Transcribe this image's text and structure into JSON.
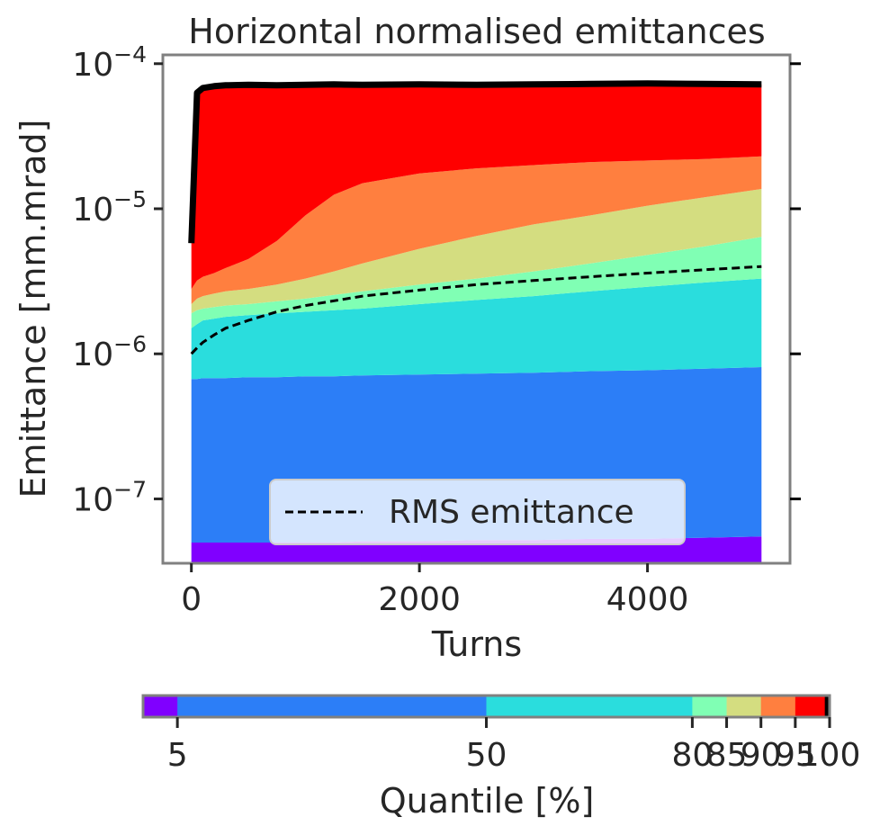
{
  "chart_data": {
    "type": "area",
    "title": "Horizontal normalised emittances",
    "xlabel": "Turns",
    "ylabel": "Emittance [mm.mrad]",
    "xlim": [
      -250,
      5250
    ],
    "ylim": [
      3.6e-08,
      0.000115
    ],
    "yscale": "log",
    "x_ticks": [
      0,
      2000,
      4000
    ],
    "x_tick_labels": [
      "0",
      "2000",
      "4000"
    ],
    "y_ticks": [
      1e-07,
      1e-06,
      1e-05,
      0.0001
    ],
    "y_tick_labels": [
      {
        "base": "10",
        "exp": "−7"
      },
      {
        "base": "10",
        "exp": "−6"
      },
      {
        "base": "10",
        "exp": "−5"
      },
      {
        "base": "10",
        "exp": "−4"
      }
    ],
    "x": [
      0,
      50,
      100,
      200,
      300,
      500,
      750,
      1000,
      1250,
      1500,
      2000,
      2500,
      3000,
      3500,
      4000,
      4500,
      5000
    ],
    "bands": [
      {
        "quantile": "5",
        "color": "#8000ff",
        "values": [
          5e-08,
          5e-08,
          5e-08,
          5e-08,
          5e-08,
          5e-08,
          5e-08,
          5e-08,
          5e-08,
          5.1e-08,
          5.1e-08,
          5.2e-08,
          5.2e-08,
          5.3e-08,
          5.3e-08,
          5.4e-08,
          5.5e-08
        ]
      },
      {
        "quantile": "50",
        "color": "#2c7ef7",
        "values": [
          6.7e-07,
          6.7e-07,
          6.8e-07,
          6.8e-07,
          6.8e-07,
          6.9e-07,
          6.9e-07,
          7e-07,
          7e-07,
          7.1e-07,
          7.2e-07,
          7.3e-07,
          7.4e-07,
          7.6e-07,
          7.7e-07,
          7.9e-07,
          8.1e-07
        ]
      },
      {
        "quantile": "80",
        "color": "#2adddd",
        "values": [
          1.5e-06,
          1.6e-06,
          1.7e-06,
          1.75e-06,
          1.8e-06,
          1.85e-06,
          1.9e-06,
          1.95e-06,
          2e-06,
          2.05e-06,
          2.2e-06,
          2.35e-06,
          2.5e-06,
          2.7e-06,
          2.9e-06,
          3.1e-06,
          3.3e-06
        ]
      },
      {
        "quantile": "85",
        "color": "#80ffb4",
        "values": [
          1.9e-06,
          2e-06,
          2.05e-06,
          2.1e-06,
          2.15e-06,
          2.2e-06,
          2.3e-06,
          2.4e-06,
          2.55e-06,
          2.7e-06,
          3e-06,
          3.3e-06,
          3.7e-06,
          4.2e-06,
          4.8e-06,
          5.5e-06,
          6.4e-06
        ]
      },
      {
        "quantile": "90",
        "color": "#d4dd80",
        "values": [
          2.2e-06,
          2.4e-06,
          2.5e-06,
          2.6e-06,
          2.7e-06,
          2.8e-06,
          3e-06,
          3.3e-06,
          3.7e-06,
          4.2e-06,
          5.3e-06,
          6.5e-06,
          7.8e-06,
          9e-06,
          1.05e-05,
          1.2e-05,
          1.37e-05
        ]
      },
      {
        "quantile": "95",
        "color": "#ff7f3f",
        "values": [
          2.8e-06,
          3.2e-06,
          3.4e-06,
          3.6e-06,
          3.9e-06,
          4.5e-06,
          6e-06,
          9e-06,
          1.25e-05,
          1.5e-05,
          1.75e-05,
          1.9e-05,
          2e-05,
          2.1e-05,
          2.15e-05,
          2.2e-05,
          2.3e-05
        ]
      },
      {
        "quantile": "100",
        "color": "#ff0000",
        "values": [
          5.8e-06,
          6.3e-05,
          6.8e-05,
          7e-05,
          7.1e-05,
          7.15e-05,
          7.1e-05,
          7.15e-05,
          7.2e-05,
          7.15e-05,
          7.2e-05,
          7.15e-05,
          7.2e-05,
          7.25e-05,
          7.3e-05,
          7.25e-05,
          7.2e-05
        ]
      }
    ],
    "max_line": {
      "color": "#000000"
    },
    "rms_series": {
      "name": "RMS emittance",
      "style": "dashed",
      "color": "#000000",
      "x": [
        0,
        50,
        100,
        200,
        300,
        500,
        750,
        1000,
        1500,
        2000,
        2500,
        3000,
        3500,
        4000,
        4500,
        5000
      ],
      "values": [
        1e-06,
        1.1e-06,
        1.2e-06,
        1.35e-06,
        1.5e-06,
        1.7e-06,
        1.95e-06,
        2.15e-06,
        2.5e-06,
        2.75e-06,
        3e-06,
        3.2e-06,
        3.4e-06,
        3.6e-06,
        3.8e-06,
        4e-06
      ]
    },
    "legend": {
      "position": "bottom-center"
    },
    "colorbar": {
      "label": "Quantile [%]",
      "segments": [
        {
          "color": "#8000ff",
          "from": 0,
          "to": 5
        },
        {
          "color": "#2c7ef7",
          "from": 5,
          "to": 50
        },
        {
          "color": "#2adddd",
          "from": 50,
          "to": 80
        },
        {
          "color": "#80ffb4",
          "from": 80,
          "to": 85
        },
        {
          "color": "#d4dd80",
          "from": 85,
          "to": 90
        },
        {
          "color": "#ff7f3f",
          "from": 90,
          "to": 95
        },
        {
          "color": "#ff0000",
          "from": 95,
          "to": 99.3
        },
        {
          "color": "#000000",
          "from": 99.3,
          "to": 100
        }
      ],
      "tick_labels": [
        "5",
        "50",
        "80",
        "85",
        "90",
        "95",
        "100"
      ]
    },
    "grid": false,
    "frame_color": "#808080"
  }
}
